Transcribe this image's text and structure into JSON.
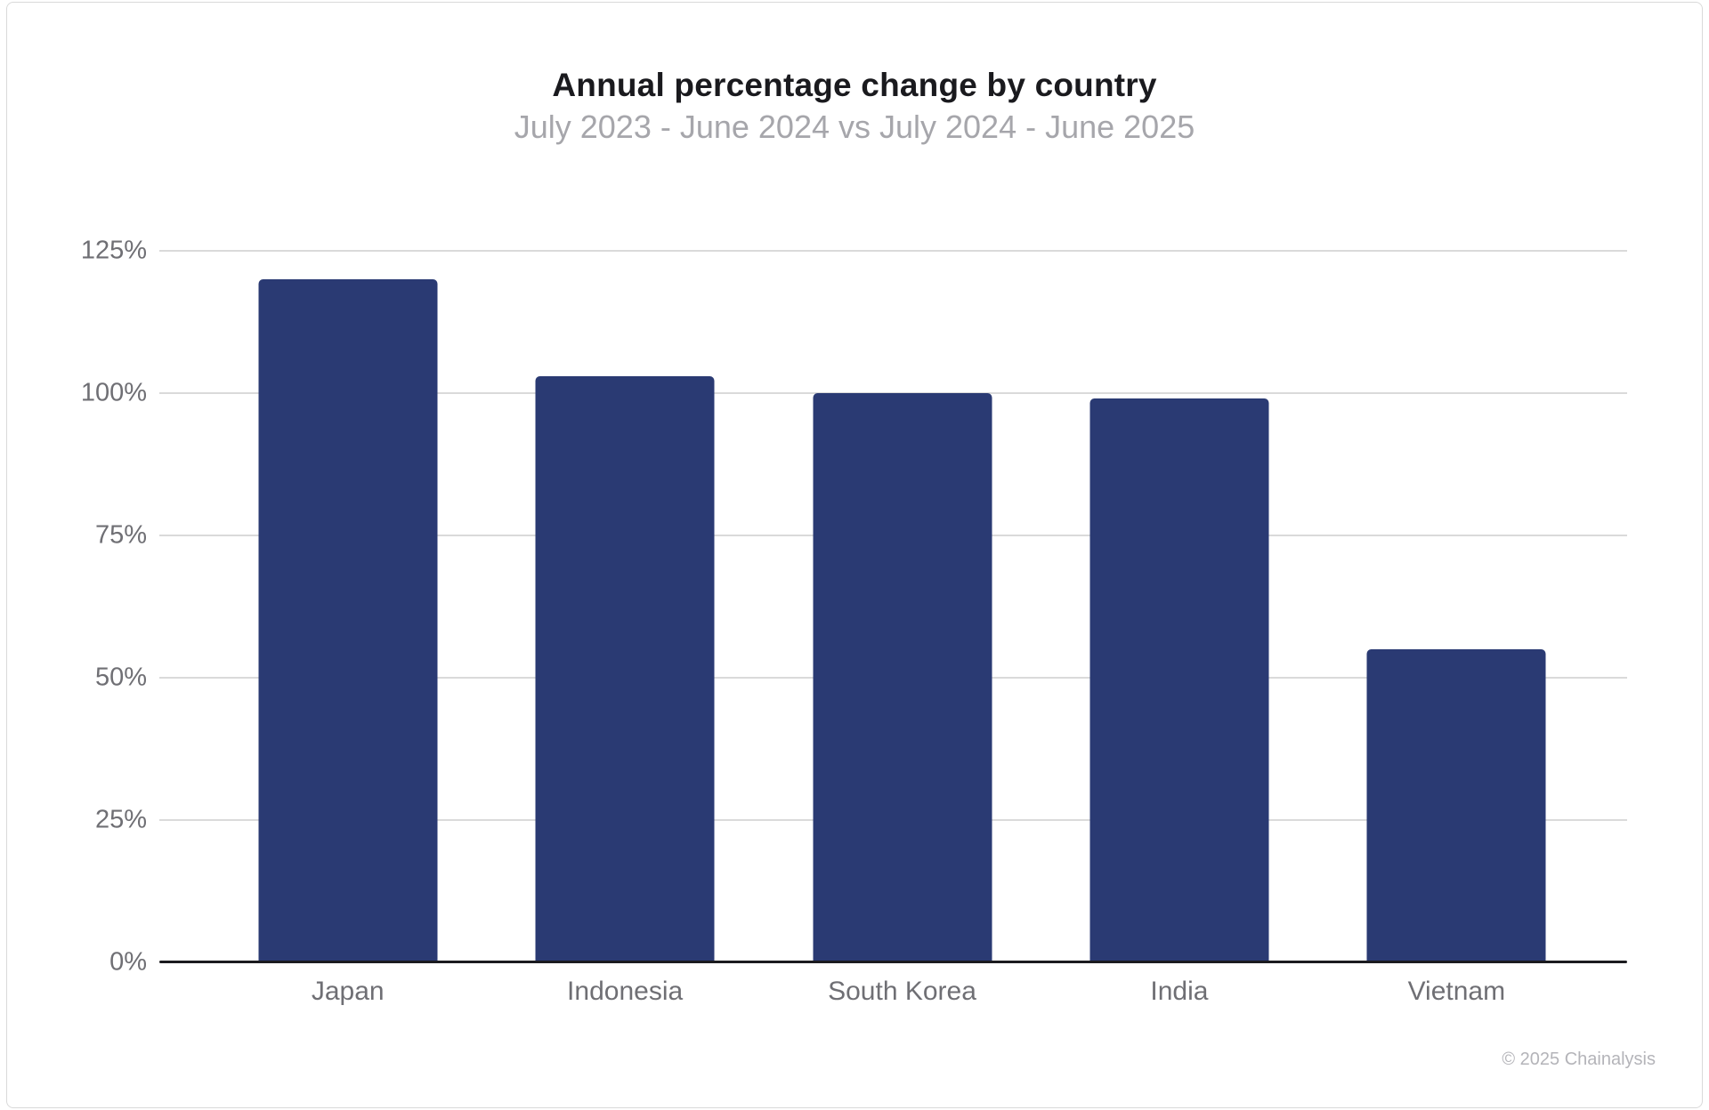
{
  "page": {
    "footer": "© 2025 Chainalysis"
  },
  "chart_data": {
    "type": "bar",
    "title": "Annual percentage change by country",
    "subtitle": "July 2023 - June 2024 vs July 2024 - June 2025",
    "categories": [
      "Japan",
      "Indonesia",
      "South Korea",
      "India",
      "Vietnam"
    ],
    "values": [
      120,
      103,
      100,
      99,
      55
    ],
    "unit": "%",
    "xlabel": "",
    "ylabel": "",
    "ylim": [
      0,
      125
    ],
    "yticks": [
      {
        "value": 0,
        "label": "0%"
      },
      {
        "value": 25,
        "label": "25%"
      },
      {
        "value": 50,
        "label": "50%"
      },
      {
        "value": 75,
        "label": "75%"
      },
      {
        "value": 100,
        "label": "100%"
      },
      {
        "value": 125,
        "label": "125%"
      }
    ],
    "grid": "horizontal",
    "legend": "none",
    "colors": {
      "bar": "#2a3a73",
      "title_text": "#1a1a1e",
      "subtitle_text": "#a6a6ab",
      "axis_label_text": "#6f6f74",
      "gridline": "#dadada",
      "axis_line": "#1b1b1f",
      "card_border": "#d9d9d9",
      "footer_text": "#b4b4b9",
      "background": "#ffffff"
    }
  }
}
